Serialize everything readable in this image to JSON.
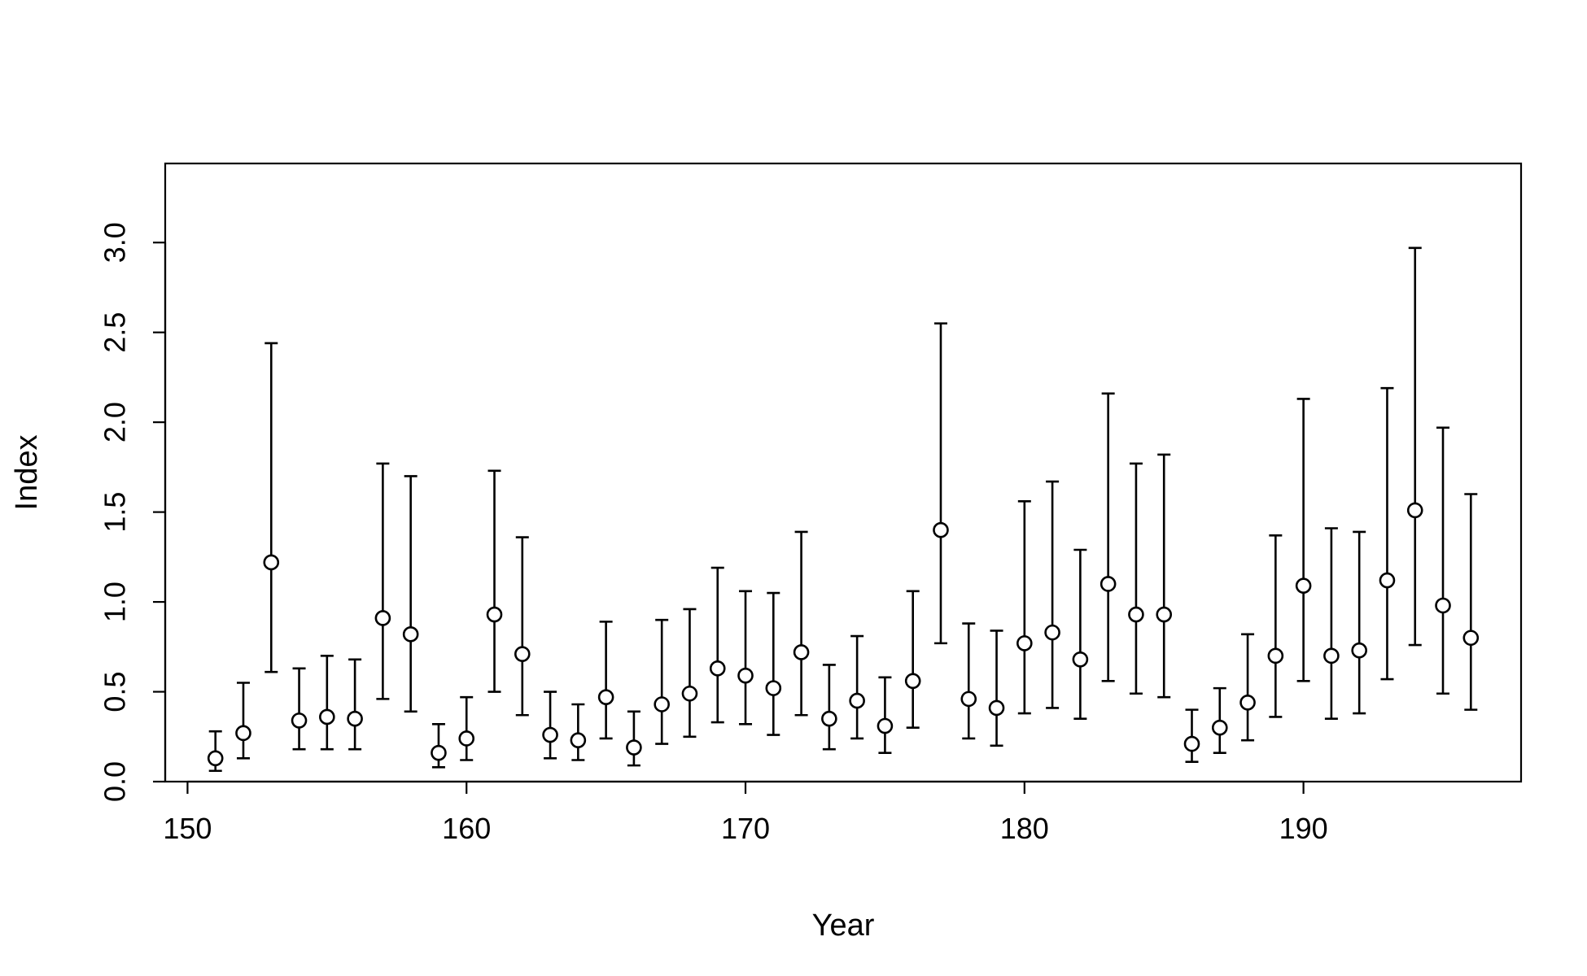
{
  "chart_data": {
    "type": "scatter",
    "title": "",
    "xlabel": "Year",
    "ylabel": "Index",
    "xlim": [
      149.2,
      197.8
    ],
    "ylim": [
      0,
      3.44
    ],
    "x_ticks": [
      150,
      160,
      170,
      180,
      190
    ],
    "y_ticks": [
      0.0,
      0.5,
      1.0,
      1.5,
      2.0,
      2.5,
      3.0
    ],
    "x_tick_labels": [
      "150",
      "160",
      "170",
      "180",
      "190"
    ],
    "y_tick_labels": [
      "0.0",
      "0.5",
      "1.0",
      "1.5",
      "2.0",
      "2.5",
      "3.0"
    ],
    "grid": false,
    "legend": "none",
    "marker": "open-circle",
    "color": "#000000",
    "series": [
      {
        "x": [
          151,
          152,
          153,
          154,
          155,
          156,
          157,
          158,
          159,
          160,
          161,
          162,
          163,
          164,
          165,
          166,
          167,
          168,
          169,
          170,
          171,
          172,
          173,
          174,
          175,
          176,
          177,
          178,
          179,
          180,
          181,
          182,
          183,
          184,
          185,
          186,
          187,
          188,
          189,
          190,
          191,
          192,
          193,
          194,
          195,
          196
        ],
        "y": [
          0.13,
          0.27,
          1.22,
          0.34,
          0.36,
          0.35,
          0.91,
          0.82,
          0.16,
          0.24,
          0.93,
          0.71,
          0.26,
          0.23,
          0.47,
          0.19,
          0.43,
          0.49,
          0.63,
          0.59,
          0.52,
          0.72,
          0.35,
          0.45,
          0.31,
          0.56,
          1.4,
          0.46,
          0.41,
          0.77,
          0.83,
          0.68,
          1.1,
          0.93,
          0.93,
          0.21,
          0.3,
          0.44,
          0.7,
          1.09,
          0.7,
          0.73,
          1.12,
          1.51,
          0.98,
          0.8
        ],
        "lower": [
          0.06,
          0.13,
          0.61,
          0.18,
          0.18,
          0.18,
          0.46,
          0.39,
          0.08,
          0.12,
          0.5,
          0.37,
          0.13,
          0.12,
          0.24,
          0.09,
          0.21,
          0.25,
          0.33,
          0.32,
          0.26,
          0.37,
          0.18,
          0.24,
          0.16,
          0.3,
          0.77,
          0.24,
          0.2,
          0.38,
          0.41,
          0.35,
          0.56,
          0.49,
          0.47,
          0.11,
          0.16,
          0.23,
          0.36,
          0.56,
          0.35,
          0.38,
          0.57,
          0.76,
          0.49,
          0.4
        ],
        "upper": [
          0.28,
          0.55,
          2.44,
          0.63,
          0.7,
          0.68,
          1.77,
          1.7,
          0.32,
          0.47,
          1.73,
          1.36,
          0.5,
          0.43,
          0.89,
          0.39,
          0.9,
          0.96,
          1.19,
          1.06,
          1.05,
          1.39,
          0.65,
          0.81,
          0.58,
          1.06,
          2.55,
          0.88,
          0.84,
          1.56,
          1.67,
          1.29,
          2.16,
          1.77,
          1.82,
          0.4,
          0.52,
          0.82,
          1.37,
          2.13,
          1.41,
          1.39,
          2.19,
          2.97,
          1.97,
          1.6
        ]
      }
    ]
  }
}
